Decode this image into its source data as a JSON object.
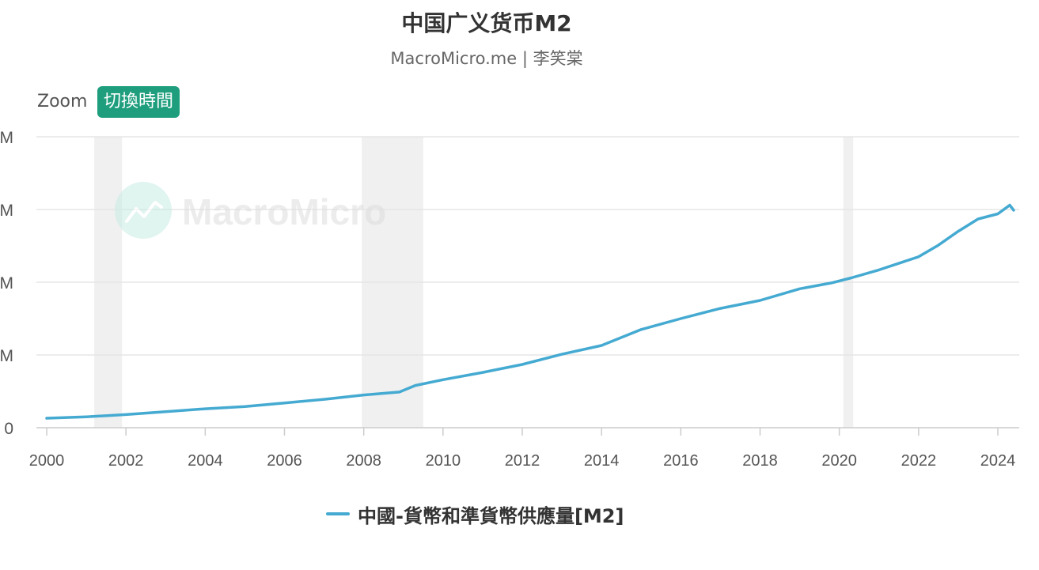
{
  "title": "中国广义货币M2",
  "subtitle": "MacroMicro.me | 李笑棠",
  "controls": {
    "zoom_label": "Zoom",
    "toggle_time_label": "切換時間"
  },
  "watermark": "MacroMicro",
  "colors": {
    "line": "#45aad1",
    "button": "#1f9e7e",
    "shade": "#f0f0f0",
    "grid": "#e6e6e6"
  },
  "chart_data": {
    "type": "line",
    "title": "中国广义货币M2",
    "ylabel": "",
    "xlabel": "",
    "xlim": [
      2000,
      2024.4
    ],
    "x_ticks": [
      "2000",
      "2002",
      "2004",
      "2006",
      "2008",
      "2010",
      "2012",
      "2014",
      "2016",
      "2018",
      "2020",
      "2022",
      "2024"
    ],
    "y_ticks_visible": [
      "M",
      "M",
      "M",
      "M",
      "0"
    ],
    "ylim": [
      0,
      4
    ],
    "grid": true,
    "legend_position": "bottom",
    "recession_shading": [
      [
        2001.2,
        2001.9
      ],
      [
        2007.95,
        2009.5
      ],
      [
        2020.1,
        2020.35
      ]
    ],
    "series": [
      {
        "name": "中國-貨幣和準貨幣供應量[M2]",
        "x": [
          2000,
          2001,
          2002,
          2003,
          2004,
          2005,
          2006,
          2007,
          2008,
          2008.9,
          2009.3,
          2010,
          2011,
          2012,
          2013,
          2014,
          2015,
          2016,
          2017,
          2018,
          2019,
          2019.8,
          2020.3,
          2021,
          2022,
          2022.5,
          2023,
          2023.5,
          2024,
          2024.3,
          2024.4
        ],
        "y": [
          0.13,
          0.15,
          0.18,
          0.22,
          0.26,
          0.29,
          0.34,
          0.39,
          0.45,
          0.49,
          0.58,
          0.66,
          0.76,
          0.87,
          1.01,
          1.13,
          1.35,
          1.5,
          1.64,
          1.75,
          1.91,
          1.99,
          2.06,
          2.17,
          2.35,
          2.51,
          2.7,
          2.87,
          2.94,
          3.06,
          2.99
        ]
      }
    ]
  },
  "legend": {
    "label": "中國-貨幣和準貨幣供應量[M2]"
  }
}
